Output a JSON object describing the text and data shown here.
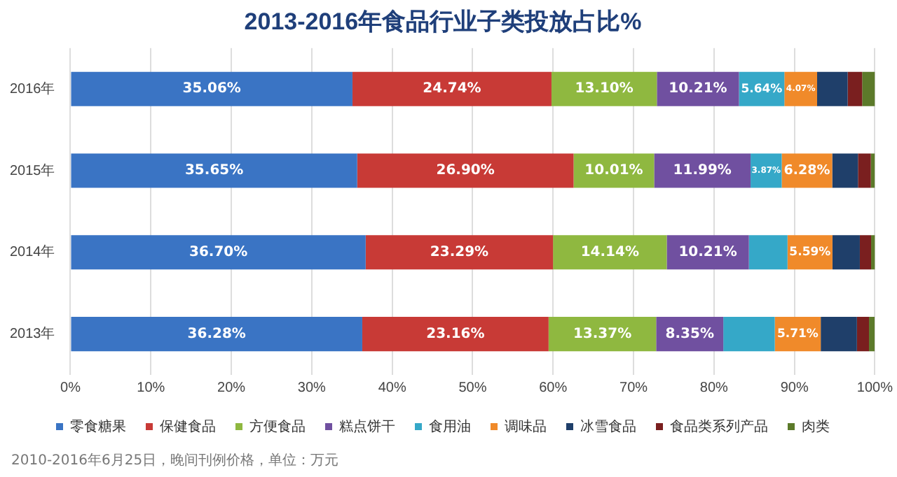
{
  "chart_data": {
    "type": "bar",
    "orientation": "horizontal",
    "stacked": true,
    "title": "2013-2016年食品行业子类投放占比%",
    "categories": [
      "2016年",
      "2015年",
      "2014年",
      "2013年"
    ],
    "series": [
      {
        "name": "零食糖果",
        "color": "#3a74c4",
        "values": [
          35.06,
          35.65,
          36.7,
          36.28
        ],
        "value_labels": [
          "35.06%",
          "35.65%",
          "36.70%",
          "36.28%"
        ]
      },
      {
        "name": "保健食品",
        "color": "#c83a36",
        "values": [
          24.74,
          26.9,
          23.29,
          23.16
        ],
        "value_labels": [
          "24.74%",
          "26.90%",
          "23.29%",
          "23.16%"
        ]
      },
      {
        "name": "方便食品",
        "color": "#8fb840",
        "values": [
          13.1,
          10.01,
          14.14,
          13.37
        ],
        "value_labels": [
          "13.10%",
          "10.01%",
          "14.14%",
          "13.37%"
        ]
      },
      {
        "name": "糕点饼干",
        "color": "#7050a0",
        "values": [
          10.21,
          11.99,
          10.21,
          8.35
        ],
        "value_labels": [
          "10.21%",
          "11.99%",
          "10.21%",
          "8.35%"
        ]
      },
      {
        "name": "食用油",
        "color": "#35a8c8",
        "values": [
          5.64,
          3.87,
          4.8,
          6.4
        ],
        "value_labels": [
          "5.64%",
          "3.87%",
          null,
          null
        ]
      },
      {
        "name": "调味品",
        "color": "#f08a2a",
        "values": [
          4.07,
          6.28,
          5.59,
          5.71
        ],
        "value_labels": [
          "4.07%",
          "6.28%",
          "5.59%",
          "5.71%"
        ]
      },
      {
        "name": "冰雪食品",
        "color": "#1f3f6a",
        "values": [
          3.8,
          3.2,
          3.4,
          4.5
        ]
      },
      {
        "name": "食品类系列产品",
        "color": "#7a1f1f",
        "values": [
          1.8,
          1.6,
          1.4,
          1.5
        ]
      },
      {
        "name": "肉类",
        "color": "#5c7a2a",
        "values": [
          1.6,
          0.5,
          0.5,
          0.7
        ]
      }
    ],
    "xlim": [
      0,
      100
    ],
    "xticks": [
      {
        "value": 0,
        "label": "0%"
      },
      {
        "value": 10,
        "label": "10%"
      },
      {
        "value": 20,
        "label": "20%"
      },
      {
        "value": 30,
        "label": "30%"
      },
      {
        "value": 40,
        "label": "40%"
      },
      {
        "value": 50,
        "label": "50%"
      },
      {
        "value": 60,
        "label": "60%"
      },
      {
        "value": 70,
        "label": "70%"
      },
      {
        "value": 80,
        "label": "80%"
      },
      {
        "value": 90,
        "label": "90%"
      },
      {
        "value": 100,
        "label": "100%"
      }
    ],
    "grid": "x",
    "legend": "bottom",
    "annotations": [
      "2010-2016年6月25日，晚间刊例价格，单位：万元"
    ]
  }
}
